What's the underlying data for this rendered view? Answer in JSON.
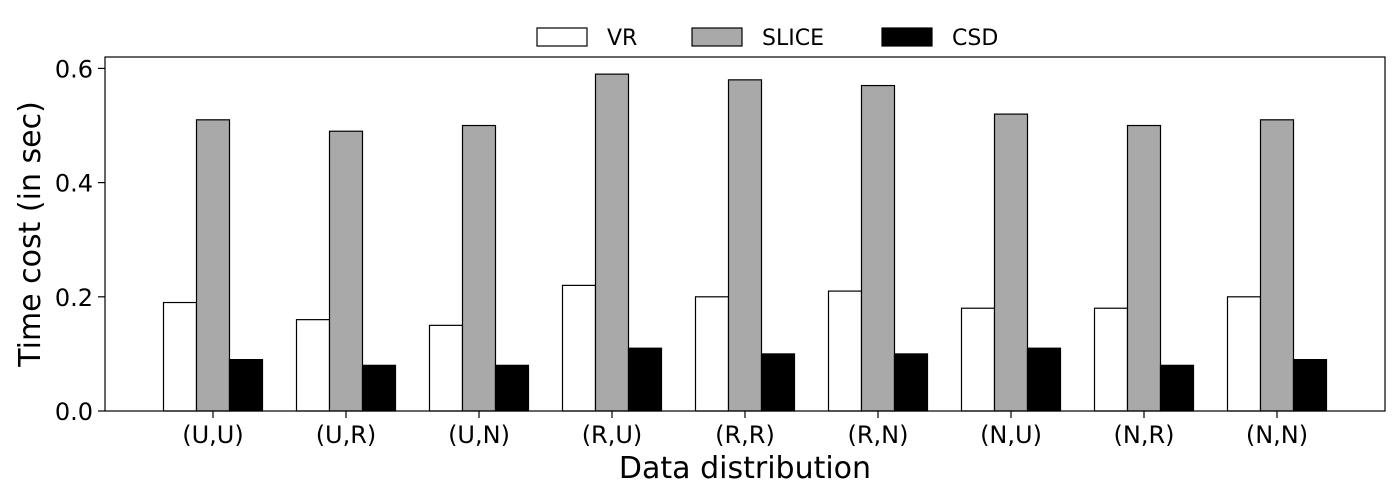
{
  "chart_data": {
    "type": "bar",
    "title": "",
    "xlabel": "Data distribution",
    "ylabel": "Time cost (in sec)",
    "categories": [
      "(U,U)",
      "(U,R)",
      "(U,N)",
      "(R,U)",
      "(R,R)",
      "(R,N)",
      "(N,U)",
      "(N,R)",
      "(N,N)"
    ],
    "series": [
      {
        "name": "VR",
        "color": "#ffffff",
        "values": [
          0.19,
          0.16,
          0.15,
          0.22,
          0.2,
          0.21,
          0.18,
          0.18,
          0.2
        ]
      },
      {
        "name": "SLICE",
        "color": "#a9a9a9",
        "values": [
          0.51,
          0.49,
          0.5,
          0.59,
          0.58,
          0.57,
          0.52,
          0.5,
          0.51
        ]
      },
      {
        "name": "CSD",
        "color": "#000000",
        "values": [
          0.09,
          0.08,
          0.08,
          0.11,
          0.1,
          0.1,
          0.11,
          0.08,
          0.09
        ]
      }
    ],
    "ylim": [
      0,
      0.62
    ],
    "yticks": [
      0.0,
      0.2,
      0.4,
      0.6
    ],
    "ytick_labels": [
      "0.0",
      "0.2",
      "0.4",
      "0.6"
    ],
    "grid": false,
    "legend": "top-center"
  }
}
